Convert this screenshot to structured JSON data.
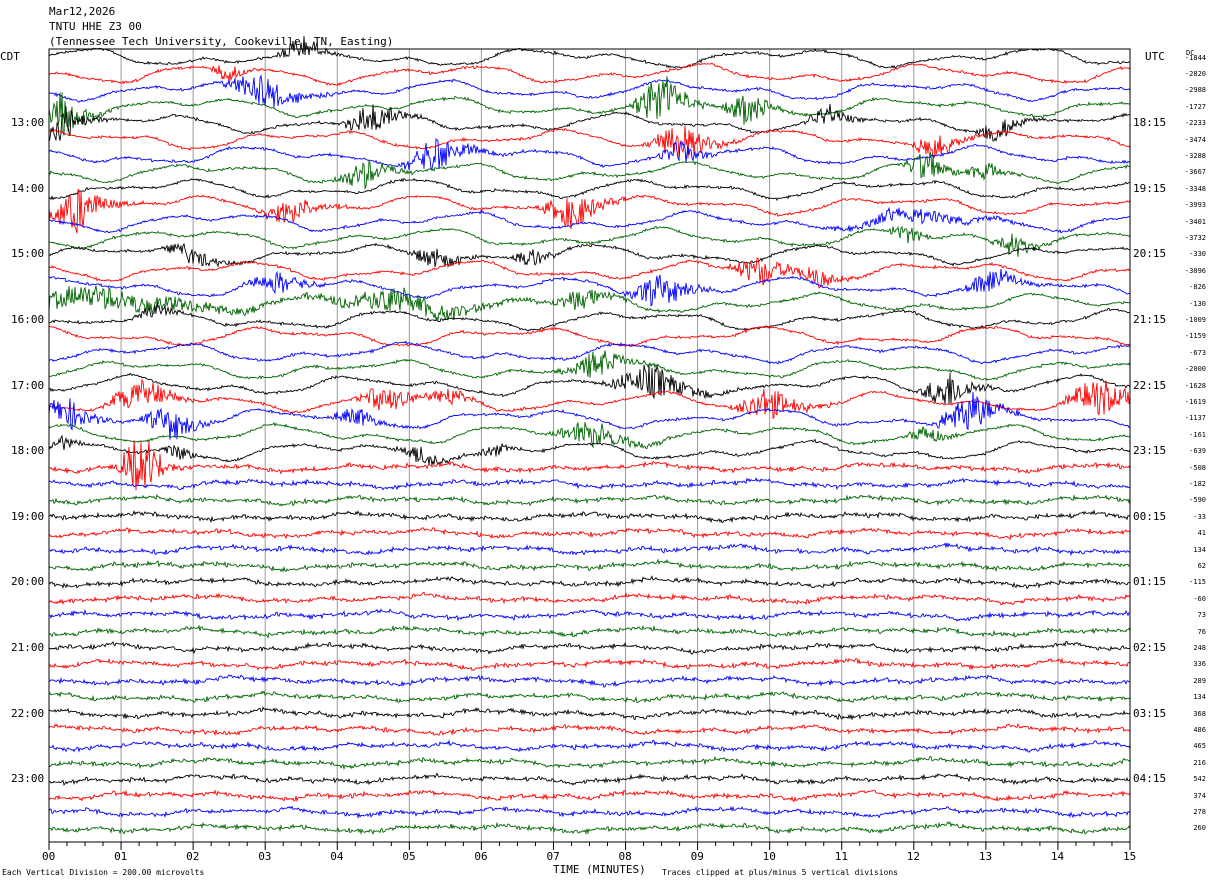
{
  "header": {
    "date": "Mar12,2026",
    "station": "TNTU HHE Z3 00",
    "location": "(Tennessee Tech University, Cookeville, TN, Easting)"
  },
  "left_zone": "CDT",
  "right_zone": "UTC",
  "dc_header": "DC",
  "footer": {
    "division": "Each Vertical Division =  200.00 microvolts",
    "clipped": "Traces clipped at plus/minus 5 vertical divisions",
    "xlabel": "TIME (MINUTES)"
  },
  "chart_data": {
    "type": "line",
    "title": "TNTU HHE Z3 00",
    "xlabel": "TIME (MINUTES)",
    "xlim": [
      0,
      15
    ],
    "x_ticks": [
      "00",
      "01",
      "02",
      "03",
      "04",
      "05",
      "06",
      "07",
      "08",
      "09",
      "10",
      "11",
      "12",
      "13",
      "14",
      "15"
    ],
    "left_hour_labels": [
      "13:00",
      "14:00",
      "15:00",
      "16:00",
      "17:00",
      "18:00",
      "19:00",
      "20:00",
      "21:00",
      "22:00",
      "23:00"
    ],
    "right_hour_labels": [
      "18:15",
      "19:15",
      "20:15",
      "21:15",
      "22:15",
      "23:15",
      "00:15",
      "01:15",
      "02:15",
      "03:15",
      "04:15"
    ],
    "trace_interval_minutes": 15,
    "trace_count": 48,
    "trace_colors": [
      "#000000",
      "#ff0000",
      "#0000ff",
      "#006400"
    ],
    "dc_offsets": [
      -1844,
      -2820,
      -2988,
      -1727,
      -2233,
      -3474,
      -3288,
      -3667,
      -3348,
      -3993,
      -3401,
      -3732,
      -330,
      -3096,
      -826,
      -130,
      -1009,
      -1159,
      -673,
      -2000,
      -1628,
      -1619,
      -1137,
      -161,
      -639,
      -508,
      -182,
      -590,
      -33,
      41,
      134,
      62,
      -115,
      -60,
      73,
      76,
      248,
      336,
      289,
      134,
      368,
      486,
      465,
      216,
      542,
      374,
      278,
      260
    ],
    "units": "microvolts",
    "vertical_division": 200.0,
    "clip_divisions": 5
  }
}
